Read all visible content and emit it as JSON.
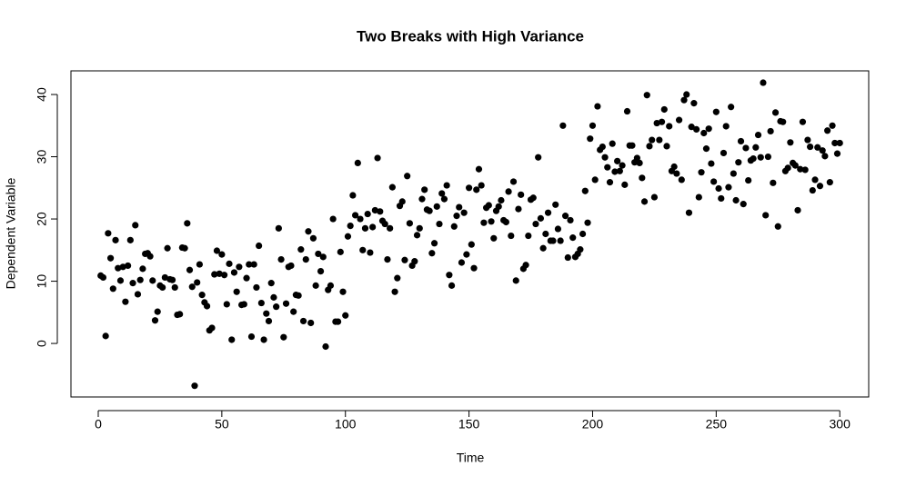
{
  "chart_data": {
    "type": "scatter",
    "title": "Two Breaks with High Variance",
    "x_label": "Time",
    "y_label": "Dependent Variable",
    "color": "#000000",
    "grid": false,
    "xlim": [
      -11.04,
      311.7
    ],
    "ylim": [
      -8.6,
      43.8
    ],
    "xticks": [
      0,
      50,
      100,
      150,
      200,
      250,
      300
    ],
    "yticks": [
      0,
      10,
      20,
      30,
      40
    ],
    "x": [
      1,
      2,
      3,
      4,
      5,
      6,
      7,
      8,
      9,
      10,
      11,
      12,
      13,
      14,
      15,
      16,
      17,
      18,
      19,
      20,
      21,
      22,
      23,
      24,
      25,
      26,
      27,
      28,
      29,
      30,
      31,
      32,
      33,
      34,
      35,
      36,
      37,
      38,
      39,
      40,
      41,
      42,
      43,
      44,
      45,
      46,
      47,
      48,
      49,
      50,
      51,
      52,
      53,
      54,
      55,
      56,
      57,
      58,
      59,
      60,
      61,
      62,
      63,
      64,
      65,
      66,
      67,
      68,
      69,
      70,
      71,
      72,
      73,
      74,
      75,
      76,
      77,
      78,
      79,
      80,
      81,
      82,
      83,
      84,
      85,
      86,
      87,
      88,
      89,
      90,
      91,
      92,
      93,
      94,
      95,
      96,
      97,
      98,
      99,
      100,
      101,
      102,
      103,
      104,
      105,
      106,
      107,
      108,
      109,
      110,
      111,
      112,
      113,
      114,
      115,
      116,
      117,
      118,
      119,
      120,
      121,
      122,
      123,
      124,
      125,
      126,
      127,
      128,
      129,
      130,
      131,
      132,
      133,
      134,
      135,
      136,
      137,
      138,
      139,
      140,
      141,
      142,
      143,
      144,
      145,
      146,
      147,
      148,
      149,
      150,
      151,
      152,
      153,
      154,
      155,
      156,
      157,
      158,
      159,
      160,
      161,
      162,
      163,
      164,
      165,
      166,
      167,
      168,
      169,
      170,
      171,
      172,
      173,
      174,
      175,
      176,
      177,
      178,
      179,
      180,
      181,
      182,
      183,
      184,
      185,
      186,
      187,
      188,
      189,
      190,
      191,
      192,
      193,
      194,
      195,
      196,
      197,
      198,
      199,
      200,
      201,
      202,
      203,
      204,
      205,
      206,
      207,
      208,
      209,
      210,
      211,
      212,
      213,
      214,
      215,
      216,
      217,
      218,
      219,
      220,
      221,
      222,
      223,
      224,
      225,
      226,
      227,
      228,
      229,
      230,
      231,
      232,
      233,
      234,
      235,
      236,
      237,
      238,
      239,
      240,
      241,
      242,
      243,
      244,
      245,
      246,
      247,
      248,
      249,
      250,
      251,
      252,
      253,
      254,
      255,
      256,
      257,
      258,
      259,
      260,
      261,
      262,
      263,
      264,
      265,
      266,
      267,
      268,
      269,
      270,
      271,
      272,
      273,
      274,
      275,
      276,
      277,
      278,
      279,
      280,
      281,
      282,
      283,
      284,
      285,
      286,
      287,
      288,
      289,
      290,
      291,
      292,
      293,
      294,
      295,
      296,
      297,
      298,
      299,
      300
    ],
    "y": [
      10.9,
      10.6,
      1.2,
      17.7,
      13.7,
      8.8,
      16.6,
      12.1,
      10.1,
      12.3,
      6.7,
      12.5,
      16.6,
      9.7,
      19.0,
      7.9,
      10.2,
      12.0,
      14.4,
      14.5,
      14.0,
      10.1,
      3.7,
      5.1,
      9.3,
      9.0,
      10.6,
      15.3,
      10.3,
      10.2,
      9.0,
      4.6,
      4.7,
      15.4,
      15.3,
      19.3,
      11.8,
      9.1,
      -6.8,
      9.8,
      12.7,
      7.8,
      6.6,
      6.0,
      2.1,
      2.5,
      11.1,
      14.9,
      11.2,
      14.3,
      11.0,
      6.3,
      12.8,
      0.6,
      11.4,
      8.3,
      12.3,
      6.2,
      6.3,
      10.5,
      12.7,
      1.1,
      12.7,
      9.0,
      15.7,
      6.5,
      0.6,
      4.8,
      3.6,
      9.7,
      7.4,
      5.9,
      18.5,
      13.5,
      1.0,
      6.4,
      12.3,
      12.5,
      5.1,
      7.8,
      7.7,
      15.1,
      3.6,
      13.5,
      18.0,
      3.3,
      16.9,
      9.3,
      14.4,
      11.6,
      13.9,
      -0.5,
      8.6,
      9.3,
      20.0,
      3.5,
      3.5,
      14.7,
      8.3,
      4.5,
      17.2,
      18.9,
      23.8,
      20.6,
      29.0,
      20.0,
      15.0,
      18.5,
      20.8,
      14.6,
      18.7,
      21.4,
      29.8,
      21.2,
      19.7,
      19.2,
      13.5,
      18.5,
      25.1,
      8.3,
      10.5,
      22.1,
      22.8,
      13.4,
      26.9,
      19.3,
      12.5,
      13.2,
      17.4,
      18.5,
      23.2,
      24.7,
      21.5,
      21.3,
      14.5,
      16.1,
      22.0,
      19.2,
      24.1,
      23.2,
      25.4,
      11.0,
      9.3,
      18.8,
      20.5,
      21.9,
      13.0,
      21.0,
      14.3,
      25.0,
      15.9,
      12.1,
      24.7,
      28.0,
      25.4,
      19.4,
      21.8,
      22.2,
      19.6,
      16.9,
      21.3,
      22.0,
      23.0,
      19.8,
      19.5,
      24.4,
      17.3,
      26.0,
      10.1,
      21.6,
      23.9,
      12.0,
      12.6,
      17.3,
      23.1,
      23.4,
      19.2,
      29.9,
      20.1,
      15.3,
      17.6,
      21.0,
      16.5,
      16.5,
      22.3,
      18.4,
      16.5,
      35.0,
      20.5,
      13.8,
      19.8,
      17.0,
      13.9,
      14.4,
      15.1,
      17.6,
      24.5,
      19.4,
      32.9,
      35.0,
      26.3,
      38.1,
      31.1,
      31.6,
      29.9,
      28.3,
      25.9,
      32.1,
      27.6,
      29.3,
      27.7,
      28.6,
      25.5,
      37.3,
      31.8,
      31.8,
      29.1,
      29.8,
      29.0,
      26.6,
      22.8,
      39.9,
      31.7,
      32.7,
      23.5,
      35.4,
      32.7,
      35.6,
      37.6,
      31.7,
      34.9,
      27.7,
      28.4,
      27.3,
      35.9,
      26.3,
      39.1,
      40.0,
      21.0,
      34.8,
      38.6,
      34.4,
      23.5,
      27.5,
      33.8,
      31.3,
      34.5,
      28.9,
      26.0,
      37.2,
      24.9,
      23.3,
      30.6,
      34.9,
      25.1,
      38.0,
      27.3,
      23.0,
      29.1,
      32.5,
      22.4,
      31.4,
      26.2,
      29.4,
      29.7,
      31.5,
      33.5,
      29.9,
      41.9,
      20.6,
      30.0,
      34.1,
      25.8,
      37.1,
      18.8,
      35.7,
      35.6,
      27.7,
      28.2,
      32.3,
      29.0,
      28.6,
      21.4,
      28.0,
      35.6,
      27.9,
      32.7,
      31.6,
      24.6,
      26.3,
      31.5,
      25.3,
      31.0,
      30.1,
      34.2,
      25.9,
      35.0,
      32.2,
      30.5,
      32.2
    ]
  }
}
